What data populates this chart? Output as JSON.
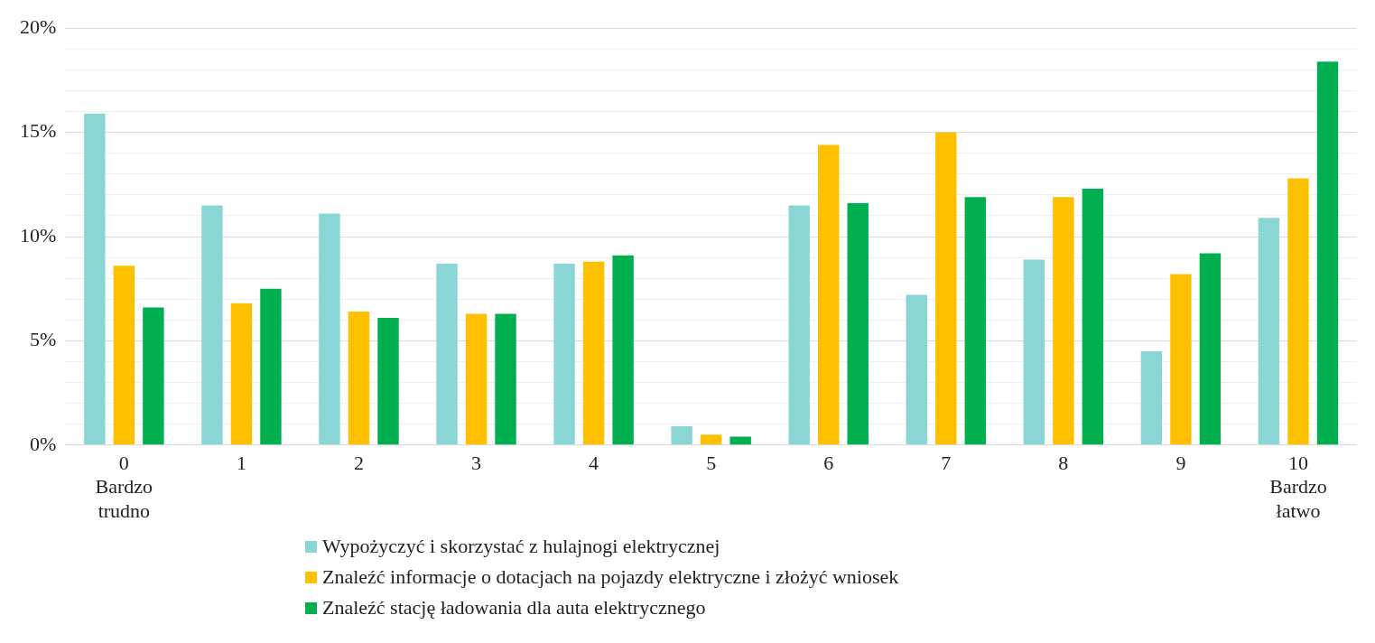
{
  "chart_data": {
    "type": "bar",
    "categories": [
      "0\nBardzo\ntrudno",
      "1",
      "2",
      "3",
      "4",
      "5",
      "6",
      "7",
      "8",
      "9",
      "10\nBardzo\nłatwo"
    ],
    "series": [
      {
        "name": "Wypożyczyć i skorzystać z hulajnogi elektrycznej",
        "color": "#8ad6d4",
        "values": [
          15.9,
          11.5,
          11.1,
          8.7,
          8.7,
          0.9,
          11.5,
          7.2,
          8.9,
          4.5,
          10.9
        ]
      },
      {
        "name": "Znaleźć informacje o dotacjach na pojazdy elektryczne i złożyć wniosek",
        "color": "#ffc000",
        "values": [
          8.6,
          6.8,
          6.4,
          6.3,
          8.8,
          0.5,
          14.4,
          15.0,
          11.9,
          8.2,
          12.8
        ]
      },
      {
        "name": "Znaleźć stację ładowania dla auta elektrycznego",
        "color": "#00b050",
        "values": [
          6.6,
          7.5,
          6.1,
          6.3,
          9.1,
          0.4,
          11.6,
          11.9,
          12.3,
          9.2,
          18.4
        ]
      }
    ],
    "ylim": [
      0,
      20
    ],
    "yticks": [
      {
        "value": 0,
        "label": "0%"
      },
      {
        "value": 1,
        "label": null
      },
      {
        "value": 2,
        "label": null
      },
      {
        "value": 3,
        "label": null
      },
      {
        "value": 4,
        "label": null
      },
      {
        "value": 5,
        "label": "5%"
      },
      {
        "value": 6,
        "label": null
      },
      {
        "value": 7,
        "label": null
      },
      {
        "value": 8,
        "label": null
      },
      {
        "value": 9,
        "label": null
      },
      {
        "value": 10,
        "label": "10%"
      },
      {
        "value": 11,
        "label": null
      },
      {
        "value": 12,
        "label": null
      },
      {
        "value": 13,
        "label": null
      },
      {
        "value": 14,
        "label": null
      },
      {
        "value": 15,
        "label": "15%"
      },
      {
        "value": 16,
        "label": null
      },
      {
        "value": 17,
        "label": null
      },
      {
        "value": 18,
        "label": null
      },
      {
        "value": 19,
        "label": null
      },
      {
        "value": 20,
        "label": "20%"
      }
    ],
    "grid": "y",
    "legend": "bottom"
  }
}
